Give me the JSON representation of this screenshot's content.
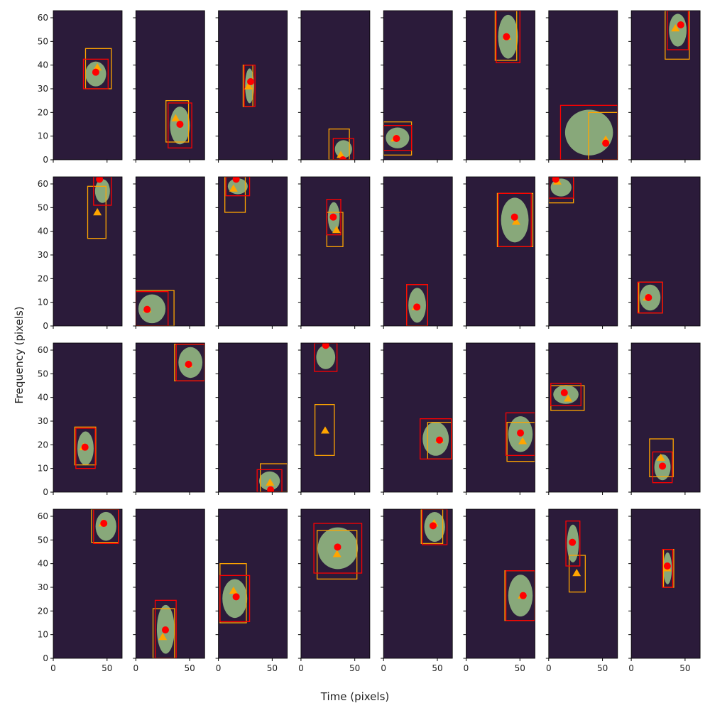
{
  "chart_data": {
    "type": "scatter",
    "xlabel": "Time (pixels)",
    "ylabel": "Frequency (pixels)",
    "xlim": [
      0,
      64
    ],
    "ylim": [
      0,
      63
    ],
    "xticks": [
      0,
      50
    ],
    "yticks": [
      0,
      10,
      20,
      30,
      40,
      50,
      60
    ],
    "columns": 8,
    "red_color": "#ff0000",
    "orange_color": "#ffa500",
    "background": "#2b1b3a",
    "panels": [
      {
        "red": [
          39.5,
          37
        ],
        "orange": [
          41,
          39
        ],
        "red_box": [
          28,
          51,
          30,
          42.5
        ],
        "orange_box": [
          30,
          54,
          30,
          47
        ]
      },
      {
        "red": [
          41,
          15
        ],
        "orange": [
          37,
          17.5
        ],
        "red_box": [
          30,
          52,
          5,
          24
        ],
        "orange_box": [
          28,
          49,
          7.5,
          25
        ]
      },
      {
        "red": [
          30,
          33
        ],
        "orange": [
          28,
          31
        ],
        "red_box": [
          24,
          34,
          22.5,
          40
        ],
        "orange_box": [
          23,
          32,
          22.5,
          40
        ]
      },
      {
        "red": [
          39,
          0
        ],
        "orange": [
          37,
          2
        ],
        "red_box": [
          30,
          49,
          0,
          9
        ],
        "orange_box": [
          26,
          45,
          0,
          13
        ]
      },
      {
        "red": [
          12,
          9
        ],
        "orange": [
          10.5,
          9
        ],
        "red_box": [
          0,
          26,
          4,
          14.5
        ],
        "orange_box": [
          0,
          26,
          2,
          16
        ]
      },
      {
        "red": [
          37.5,
          52
        ],
        "orange": [
          38,
          52
        ],
        "red_box": [
          28,
          50,
          41,
          63
        ],
        "orange_box": [
          27,
          47,
          42,
          63
        ]
      },
      {
        "red": [
          53,
          7
        ],
        "orange": [
          53,
          8.5
        ],
        "red_box": [
          11,
          64,
          0,
          23
        ],
        "orange_box": [
          37,
          64,
          0,
          20
        ]
      },
      {
        "red": [
          46,
          57
        ],
        "orange": [
          41,
          55.5
        ],
        "red_box": [
          33.5,
          53,
          46.5,
          63
        ],
        "orange_box": [
          31.5,
          54,
          42.5,
          63
        ]
      },
      {
        "red": [
          43,
          62
        ],
        "orange": [
          41,
          48
        ],
        "red_box": [
          37.5,
          54,
          51,
          63
        ],
        "orange_box": [
          32,
          49,
          37,
          59
        ]
      },
      {
        "red": [
          10.5,
          7
        ],
        "orange": [
          10.5,
          7
        ],
        "red_box": [
          0,
          30,
          0,
          14.5
        ],
        "orange_box": [
          0,
          35.5,
          0,
          15
        ]
      },
      {
        "red": [
          16.5,
          62
        ],
        "orange": [
          14,
          58
        ],
        "red_box": [
          7,
          29,
          55,
          63
        ],
        "orange_box": [
          6,
          25,
          48,
          63
        ]
      },
      {
        "red": [
          30,
          46
        ],
        "orange": [
          33,
          40.5
        ],
        "red_box": [
          24,
          37,
          38.5,
          53.5
        ],
        "orange_box": [
          24,
          39,
          33.5,
          48
        ]
      },
      {
        "red": [
          31,
          8
        ],
        "orange": [
          30,
          8
        ],
        "red_box": [
          21.5,
          41,
          0,
          17.5
        ],
        "orange_box": [
          21.5,
          41,
          0,
          17.5
        ]
      },
      {
        "red": [
          45,
          46
        ],
        "orange": [
          46.5,
          44
        ],
        "red_box": [
          30,
          60.5,
          33.5,
          56
        ],
        "orange_box": [
          29,
          62,
          33.5,
          56
        ]
      },
      {
        "red": [
          6.5,
          62
        ],
        "orange": [
          8,
          61
        ],
        "red_box": [
          0,
          23,
          54,
          63
        ],
        "orange_box": [
          0,
          23,
          52,
          63
        ]
      },
      {
        "red": [
          16,
          12
        ],
        "orange": [
          14.5,
          12
        ],
        "red_box": [
          6,
          29,
          5.5,
          18.5
        ],
        "orange_box": [
          7,
          29,
          5.5,
          18.5
        ]
      },
      {
        "red": [
          29.5,
          19
        ],
        "orange": [
          28,
          19
        ],
        "red_box": [
          21,
          39,
          10,
          27
        ],
        "orange_box": [
          20,
          39.5,
          11.5,
          27.5
        ]
      },
      {
        "red": [
          49,
          54
        ],
        "orange": [
          49,
          54
        ],
        "red_box": [
          37.5,
          64,
          47,
          62.5
        ],
        "orange_box": [
          36,
          64,
          47,
          62.5
        ]
      },
      {
        "red": [
          48.5,
          1
        ],
        "orange": [
          48,
          4
        ],
        "red_box": [
          36,
          59,
          0,
          9.5
        ],
        "orange_box": [
          39,
          64,
          0,
          12
        ]
      },
      {
        "red": [
          23,
          62
        ],
        "orange": [
          22.5,
          26
        ],
        "red_box": [
          12.5,
          33.5,
          51,
          63
        ],
        "orange_box": [
          13,
          31,
          15.5,
          37
        ]
      },
      {
        "red": [
          52,
          22
        ],
        "orange": [
          52,
          22
        ],
        "red_box": [
          34,
          63,
          14,
          31
        ],
        "orange_box": [
          41,
          63,
          14,
          29.5
        ]
      },
      {
        "red": [
          50.5,
          25
        ],
        "orange": [
          52.5,
          21.5
        ],
        "red_box": [
          37,
          64,
          15.5,
          33.5
        ],
        "orange_box": [
          38,
          64,
          13,
          29.5
        ]
      },
      {
        "red": [
          14.5,
          42
        ],
        "orange": [
          18,
          39.5
        ],
        "red_box": [
          2,
          30,
          36.5,
          46
        ],
        "orange_box": [
          2,
          33,
          34.5,
          45
        ]
      },
      {
        "red": [
          29,
          11
        ],
        "orange": [
          27.5,
          14.5
        ],
        "red_box": [
          20,
          38,
          4,
          17
        ],
        "orange_box": [
          17,
          39,
          6.5,
          22.5
        ]
      },
      {
        "red": [
          47,
          57
        ],
        "orange": [
          46,
          57
        ],
        "red_box": [
          37.5,
          60.5,
          48.5,
          63
        ],
        "orange_box": [
          35.5,
          60.5,
          49,
          63
        ]
      },
      {
        "red": [
          27.5,
          12
        ],
        "orange": [
          25,
          9
        ],
        "red_box": [
          18,
          37.5,
          0,
          24.5
        ],
        "orange_box": [
          16,
          36,
          0,
          21
        ]
      },
      {
        "red": [
          16.5,
          26
        ],
        "orange": [
          14,
          28.5
        ],
        "red_box": [
          1.5,
          29,
          15.5,
          35
        ],
        "orange_box": [
          1.5,
          26,
          15,
          40
        ]
      },
      {
        "red": [
          34,
          47
        ],
        "orange": [
          33.5,
          44
        ],
        "red_box": [
          12,
          56.5,
          36,
          57
        ],
        "orange_box": [
          15,
          52,
          33.5,
          54
        ]
      },
      {
        "red": [
          46,
          56
        ],
        "orange": [
          47,
          57
        ],
        "red_box": [
          36,
          59,
          48,
          63
        ],
        "orange_box": [
          35,
          55,
          48.5,
          63
        ]
      },
      {
        "red": [
          53,
          26.5
        ],
        "orange": [
          52,
          26.5
        ],
        "red_box": [
          37,
          64,
          16,
          37
        ],
        "orange_box": [
          36,
          64,
          16,
          37
        ]
      },
      {
        "red": [
          22,
          49
        ],
        "orange": [
          26,
          36
        ],
        "red_box": [
          16,
          29,
          39,
          58
        ],
        "orange_box": [
          19,
          34,
          28,
          43.5
        ]
      },
      {
        "red": [
          33.5,
          39
        ],
        "orange": [
          33.5,
          38
        ],
        "red_box": [
          29,
          38.5,
          30,
          46
        ],
        "orange_box": [
          30,
          39.5,
          30,
          46
        ]
      }
    ]
  }
}
